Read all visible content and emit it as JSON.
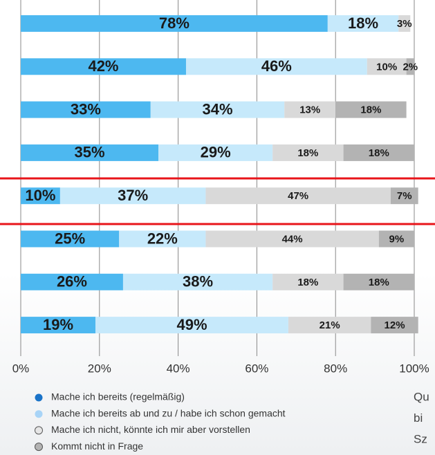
{
  "chart_data": {
    "type": "stacked-barh",
    "categories": [
      null,
      null,
      null,
      null,
      null,
      null,
      null,
      null
    ],
    "series": [
      {
        "name": "Mache ich bereits (regelmäßig)",
        "color": "#4db8f0",
        "legend_color": "#1a73c8",
        "values": [
          78,
          42,
          33,
          35,
          10,
          25,
          26,
          19
        ],
        "value_labels": [
          "78%",
          "42%",
          "33%",
          "35%",
          "10%",
          "25%",
          "26%",
          "19%"
        ]
      },
      {
        "name": "Mache ich bereits ab und zu / habe ich schon gemacht",
        "color": "#c6e9fb",
        "legend_color": "#a8d4f7",
        "values": [
          18,
          46,
          34,
          29,
          37,
          22,
          38,
          49
        ],
        "value_labels": [
          "18%",
          "46%",
          "34%",
          "29%",
          "37%",
          "22%",
          "38%",
          "49%"
        ]
      },
      {
        "name": "Mache ich nicht, könnte ich mir aber vorstellen",
        "color": "#d9d9d9",
        "legend_color": "#e6e6e6",
        "values": [
          3,
          10,
          13,
          18,
          47,
          44,
          18,
          21
        ],
        "value_labels": [
          "3%",
          "10%",
          "13%",
          "18%",
          "47%",
          "44%",
          "18%",
          "21%"
        ]
      },
      {
        "name": "Kommt nicht in Frage",
        "color": "#b3b3b3",
        "legend_color": "#b3b3b3",
        "values": [
          null,
          2,
          18,
          18,
          7,
          9,
          18,
          12
        ],
        "value_labels": [
          null,
          "2%",
          "18%",
          "18%",
          "7%",
          "9%",
          "18%",
          "12%"
        ]
      }
    ],
    "xlim": [
      0,
      100
    ],
    "xticks": [
      {
        "value": 0,
        "label": "0%"
      },
      {
        "value": 20,
        "label": "20%"
      },
      {
        "value": 40,
        "label": "40%"
      },
      {
        "value": 60,
        "label": "60%"
      },
      {
        "value": 80,
        "label": "80%"
      },
      {
        "value": 100,
        "label": "100%"
      }
    ],
    "grid": true,
    "annotations": [
      "Qu",
      "bi",
      "Sz"
    ]
  }
}
